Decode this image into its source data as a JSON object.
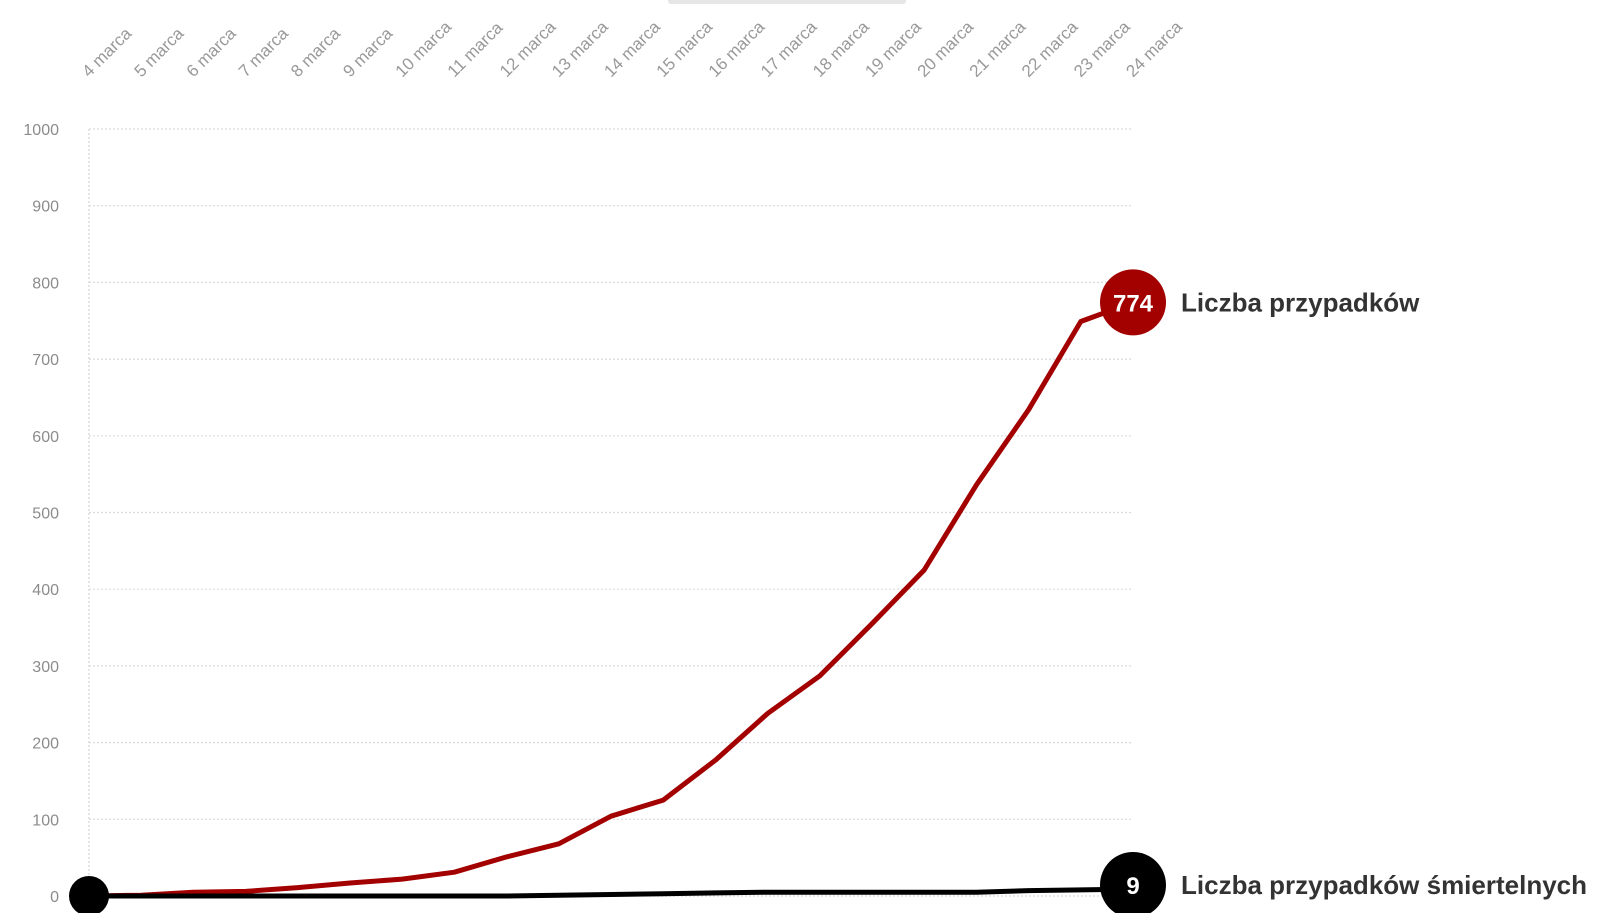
{
  "chart_data": {
    "type": "line",
    "x": [
      "4 marca",
      "5 marca",
      "6 marca",
      "7 marca",
      "8 marca",
      "9 marca",
      "10 marca",
      "11 marca",
      "12 marca",
      "13 marca",
      "14 marca",
      "15 marca",
      "16 marca",
      "17 marca",
      "18 marca",
      "19 marca",
      "20 marca",
      "21 marca",
      "22 marca",
      "23 marca",
      "24 marca"
    ],
    "ylim": [
      0,
      1000
    ],
    "yticks": [
      0,
      100,
      200,
      300,
      400,
      500,
      600,
      700,
      800,
      900,
      1000
    ],
    "grid": true,
    "series": [
      {
        "name": "Liczba przypadków",
        "color": "#a30000",
        "values": [
          0,
          1,
          5,
          6,
          11,
          17,
          22,
          31,
          51,
          68,
          104,
          125,
          177,
          238,
          287,
          355,
          425,
          536,
          634,
          749,
          774
        ],
        "end_label": "774"
      },
      {
        "name": "Liczba przypadków śmiertelnych",
        "color": "#000000",
        "values": [
          0,
          0,
          0,
          0,
          0,
          0,
          0,
          0,
          0,
          1,
          2,
          3,
          4,
          5,
          5,
          5,
          5,
          5,
          7,
          8,
          9
        ],
        "end_label": "9"
      }
    ]
  }
}
